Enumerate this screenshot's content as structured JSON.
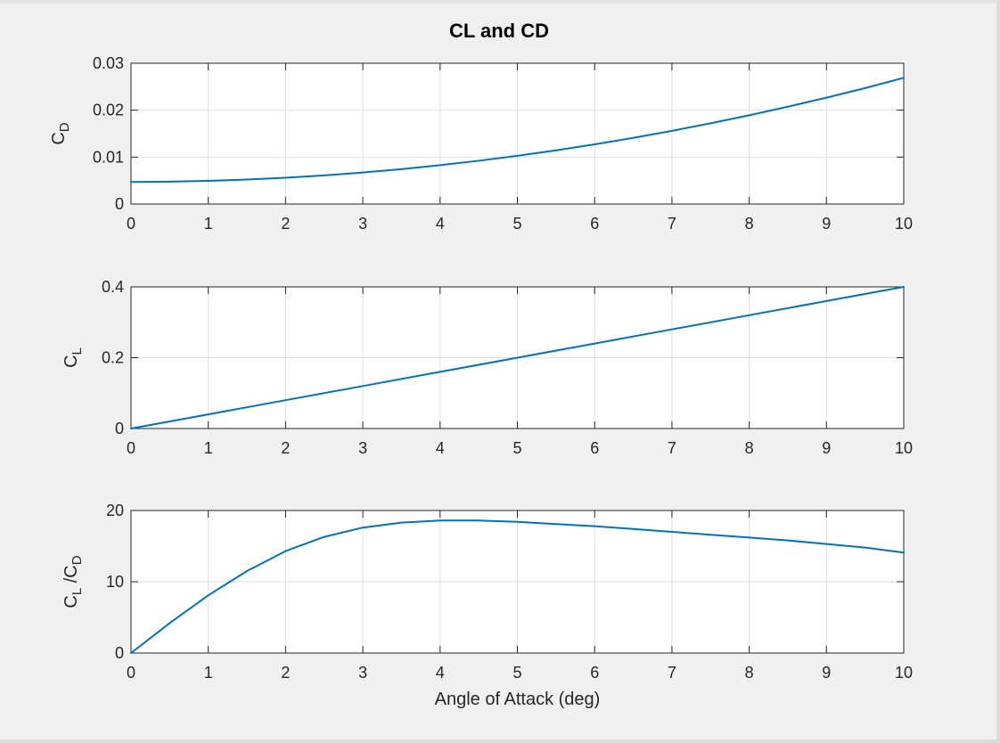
{
  "window": {
    "title": ""
  },
  "chart_data": [
    {
      "type": "line",
      "title": "CL and CD",
      "xlabel": "",
      "ylabel": "C_D",
      "ylabel_main": "C",
      "ylabel_sub": "D",
      "xlim": [
        0,
        10
      ],
      "ylim": [
        0,
        0.03
      ],
      "xticks": [
        "0",
        "1",
        "2",
        "3",
        "4",
        "5",
        "6",
        "7",
        "8",
        "9",
        "10"
      ],
      "yticks": [
        "0",
        "0.01",
        "0.02",
        "0.03"
      ],
      "grid": true,
      "color": "#0072BD",
      "x": [
        0,
        0.5,
        1,
        1.5,
        2,
        2.5,
        3,
        3.5,
        4,
        4.5,
        5,
        5.5,
        6,
        6.5,
        7,
        7.5,
        8,
        8.5,
        9,
        9.5,
        10
      ],
      "y": [
        0.0047,
        0.00476,
        0.00493,
        0.00521,
        0.0056,
        0.0061,
        0.00672,
        0.00744,
        0.00828,
        0.00922,
        0.01028,
        0.01144,
        0.01272,
        0.0141,
        0.0156,
        0.0172,
        0.01891,
        0.02074,
        0.02267,
        0.02471,
        0.0269
      ]
    },
    {
      "type": "line",
      "title": "",
      "xlabel": "",
      "ylabel": "C_L",
      "ylabel_main": "C",
      "ylabel_sub": "L",
      "xlim": [
        0,
        10
      ],
      "ylim": [
        0,
        0.4
      ],
      "xticks": [
        "0",
        "1",
        "2",
        "3",
        "4",
        "5",
        "6",
        "7",
        "8",
        "9",
        "10"
      ],
      "yticks": [
        "0",
        "0.2",
        "0.4"
      ],
      "grid": true,
      "color": "#0072BD",
      "x": [
        0,
        1,
        2,
        3,
        4,
        5,
        6,
        7,
        8,
        9,
        10
      ],
      "y": [
        0,
        0.04,
        0.08,
        0.12,
        0.16,
        0.2,
        0.24,
        0.28,
        0.32,
        0.36,
        0.4
      ]
    },
    {
      "type": "line",
      "title": "",
      "xlabel": "Angle of Attack (deg)",
      "ylabel": "C_L /C_D",
      "ylabel_parts": [
        "C",
        "L",
        " /C",
        "D"
      ],
      "xlim": [
        0,
        10
      ],
      "ylim": [
        0,
        20
      ],
      "xticks": [
        "0",
        "1",
        "2",
        "3",
        "4",
        "5",
        "6",
        "7",
        "8",
        "9",
        "10"
      ],
      "yticks": [
        "0",
        "10",
        "20"
      ],
      "grid": true,
      "color": "#0072BD",
      "x": [
        0,
        0.5,
        1,
        1.5,
        2,
        2.5,
        3,
        3.5,
        4,
        4.5,
        5,
        5.5,
        6,
        6.5,
        7,
        7.5,
        8,
        8.5,
        9,
        9.5,
        10
      ],
      "y": [
        0,
        4.2,
        8.1,
        11.5,
        14.3,
        16.3,
        17.6,
        18.3,
        18.6,
        18.6,
        18.4,
        18.1,
        17.8,
        17.4,
        17.0,
        16.6,
        16.2,
        15.8,
        15.3,
        14.8,
        14.1
      ]
    }
  ]
}
